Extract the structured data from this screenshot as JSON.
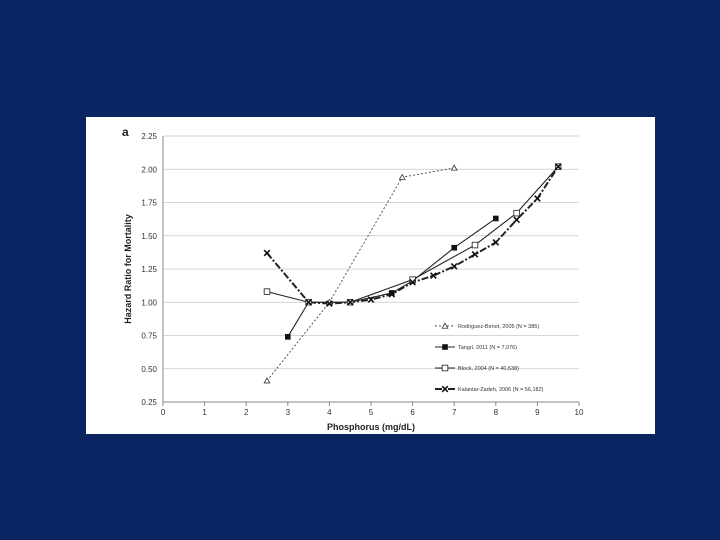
{
  "chart_data": {
    "type": "line",
    "panel_label": "a",
    "xlabel": "Phosphorus (mg/dL)",
    "ylabel": "Hazard Ratio for Mortality",
    "xlim": [
      0,
      10
    ],
    "ylim": [
      0.25,
      2.25
    ],
    "x_ticks": [
      "0",
      "1",
      "2",
      "3",
      "4",
      "5",
      "6",
      "7",
      "8",
      "9",
      "10"
    ],
    "y_ticks": [
      "0.25",
      "0.50",
      "0.75",
      "1.00",
      "1.25",
      "1.50",
      "1.75",
      "2.00",
      "2.25"
    ],
    "grid": "horizontal",
    "legend_position": "bottom-right",
    "series": [
      {
        "name": "Rodriguez-Benot, 2005 (N = 385)",
        "marker": "triangle-open",
        "line": "dotted",
        "x": [
          2.5,
          4.0,
          5.75,
          7.0
        ],
        "y": [
          0.41,
          1.0,
          1.94,
          2.01
        ]
      },
      {
        "name": "Tangri, 2011 (N = 7,076)",
        "marker": "square-filled",
        "line": "solid",
        "x": [
          3.0,
          3.5,
          4.5,
          5.5,
          6.0,
          7.0,
          8.0
        ],
        "y": [
          0.74,
          1.0,
          1.0,
          1.07,
          1.16,
          1.41,
          1.63
        ]
      },
      {
        "name": "Block, 2004 (N = 40,538)",
        "marker": "square-open",
        "line": "solid",
        "x": [
          2.5,
          3.5,
          4.5,
          6.0,
          7.5,
          8.5,
          9.5
        ],
        "y": [
          1.08,
          1.0,
          1.0,
          1.17,
          1.43,
          1.67,
          2.02
        ]
      },
      {
        "name": "Kalantar-Zadeh, 2006 (N = 56,182)",
        "marker": "x",
        "line": "dashdot",
        "x": [
          2.5,
          3.5,
          4.0,
          4.5,
          5.0,
          5.5,
          6.0,
          6.5,
          7.0,
          7.5,
          8.0,
          8.5,
          9.0,
          9.5
        ],
        "y": [
          1.37,
          1.0,
          0.99,
          1.0,
          1.02,
          1.06,
          1.15,
          1.2,
          1.27,
          1.36,
          1.45,
          1.62,
          1.78,
          2.02
        ]
      }
    ]
  }
}
